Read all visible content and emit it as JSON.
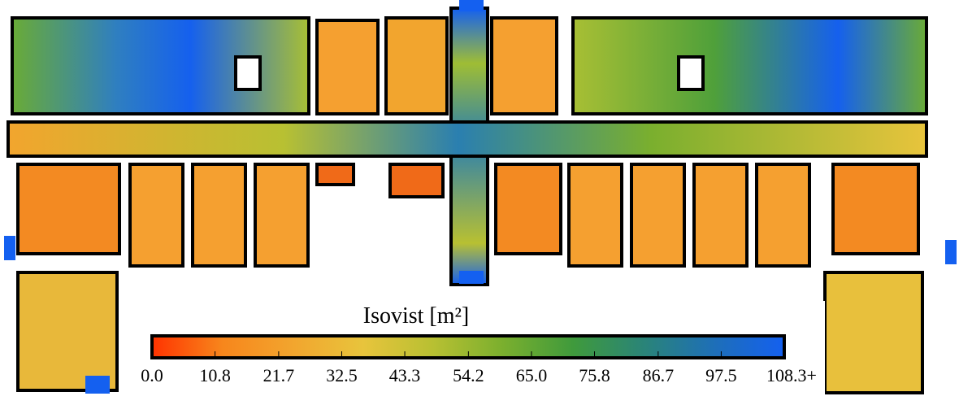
{
  "colorbar": {
    "title": "Isovist [m²]",
    "ticks": [
      {
        "value": 0,
        "label": "0.0"
      },
      {
        "value": 10.8,
        "label": "10.8"
      },
      {
        "value": 21.7,
        "label": "21.7"
      },
      {
        "value": 32.5,
        "label": "32.5"
      },
      {
        "value": 43.3,
        "label": "43.3"
      },
      {
        "value": 54.2,
        "label": "54.2"
      },
      {
        "value": 65,
        "label": "65.0"
      },
      {
        "value": 75.8,
        "label": "75.8"
      },
      {
        "value": 86.7,
        "label": "86.7"
      },
      {
        "value": 97.5,
        "label": "97.5"
      },
      {
        "value": 108.3,
        "label": "108.3+"
      }
    ],
    "colormap": [
      "#ff3300",
      "#f7861c",
      "#f2a52e",
      "#e8c43c",
      "#b8c032",
      "#7aaf2e",
      "#3f9a3c",
      "#2a8478",
      "#1e6fb8",
      "#1460f0"
    ]
  }
}
